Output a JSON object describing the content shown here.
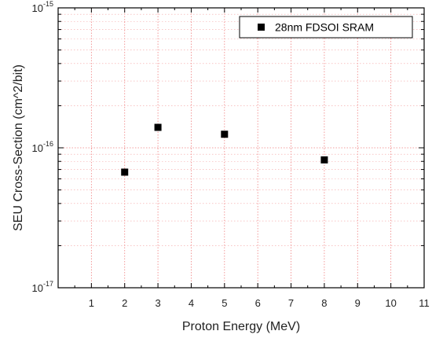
{
  "chart_data": {
    "type": "scatter",
    "title": "",
    "xlabel": "Proton Energy (MeV)",
    "ylabel": "SEU Cross-Section (cm^2/bit)",
    "xlim": [
      0,
      11
    ],
    "ylim": [
      1e-17,
      1e-15
    ],
    "yscale": "log",
    "grid": true,
    "legend_position": "top-right",
    "x_ticks": [
      "1",
      "2",
      "3",
      "4",
      "5",
      "6",
      "7",
      "8",
      "9",
      "10",
      "11"
    ],
    "y_ticks": [
      {
        "base": "10",
        "exp": "-17"
      },
      {
        "base": "10",
        "exp": "-16"
      },
      {
        "base": "10",
        "exp": "-15"
      }
    ],
    "series": [
      {
        "name": "28nm FDSOI SRAM",
        "marker": "square",
        "color": "#000000",
        "x": [
          2,
          3,
          5,
          8
        ],
        "y": [
          6.7e-17,
          1.4e-16,
          1.25e-16,
          8.2e-17
        ]
      }
    ]
  }
}
